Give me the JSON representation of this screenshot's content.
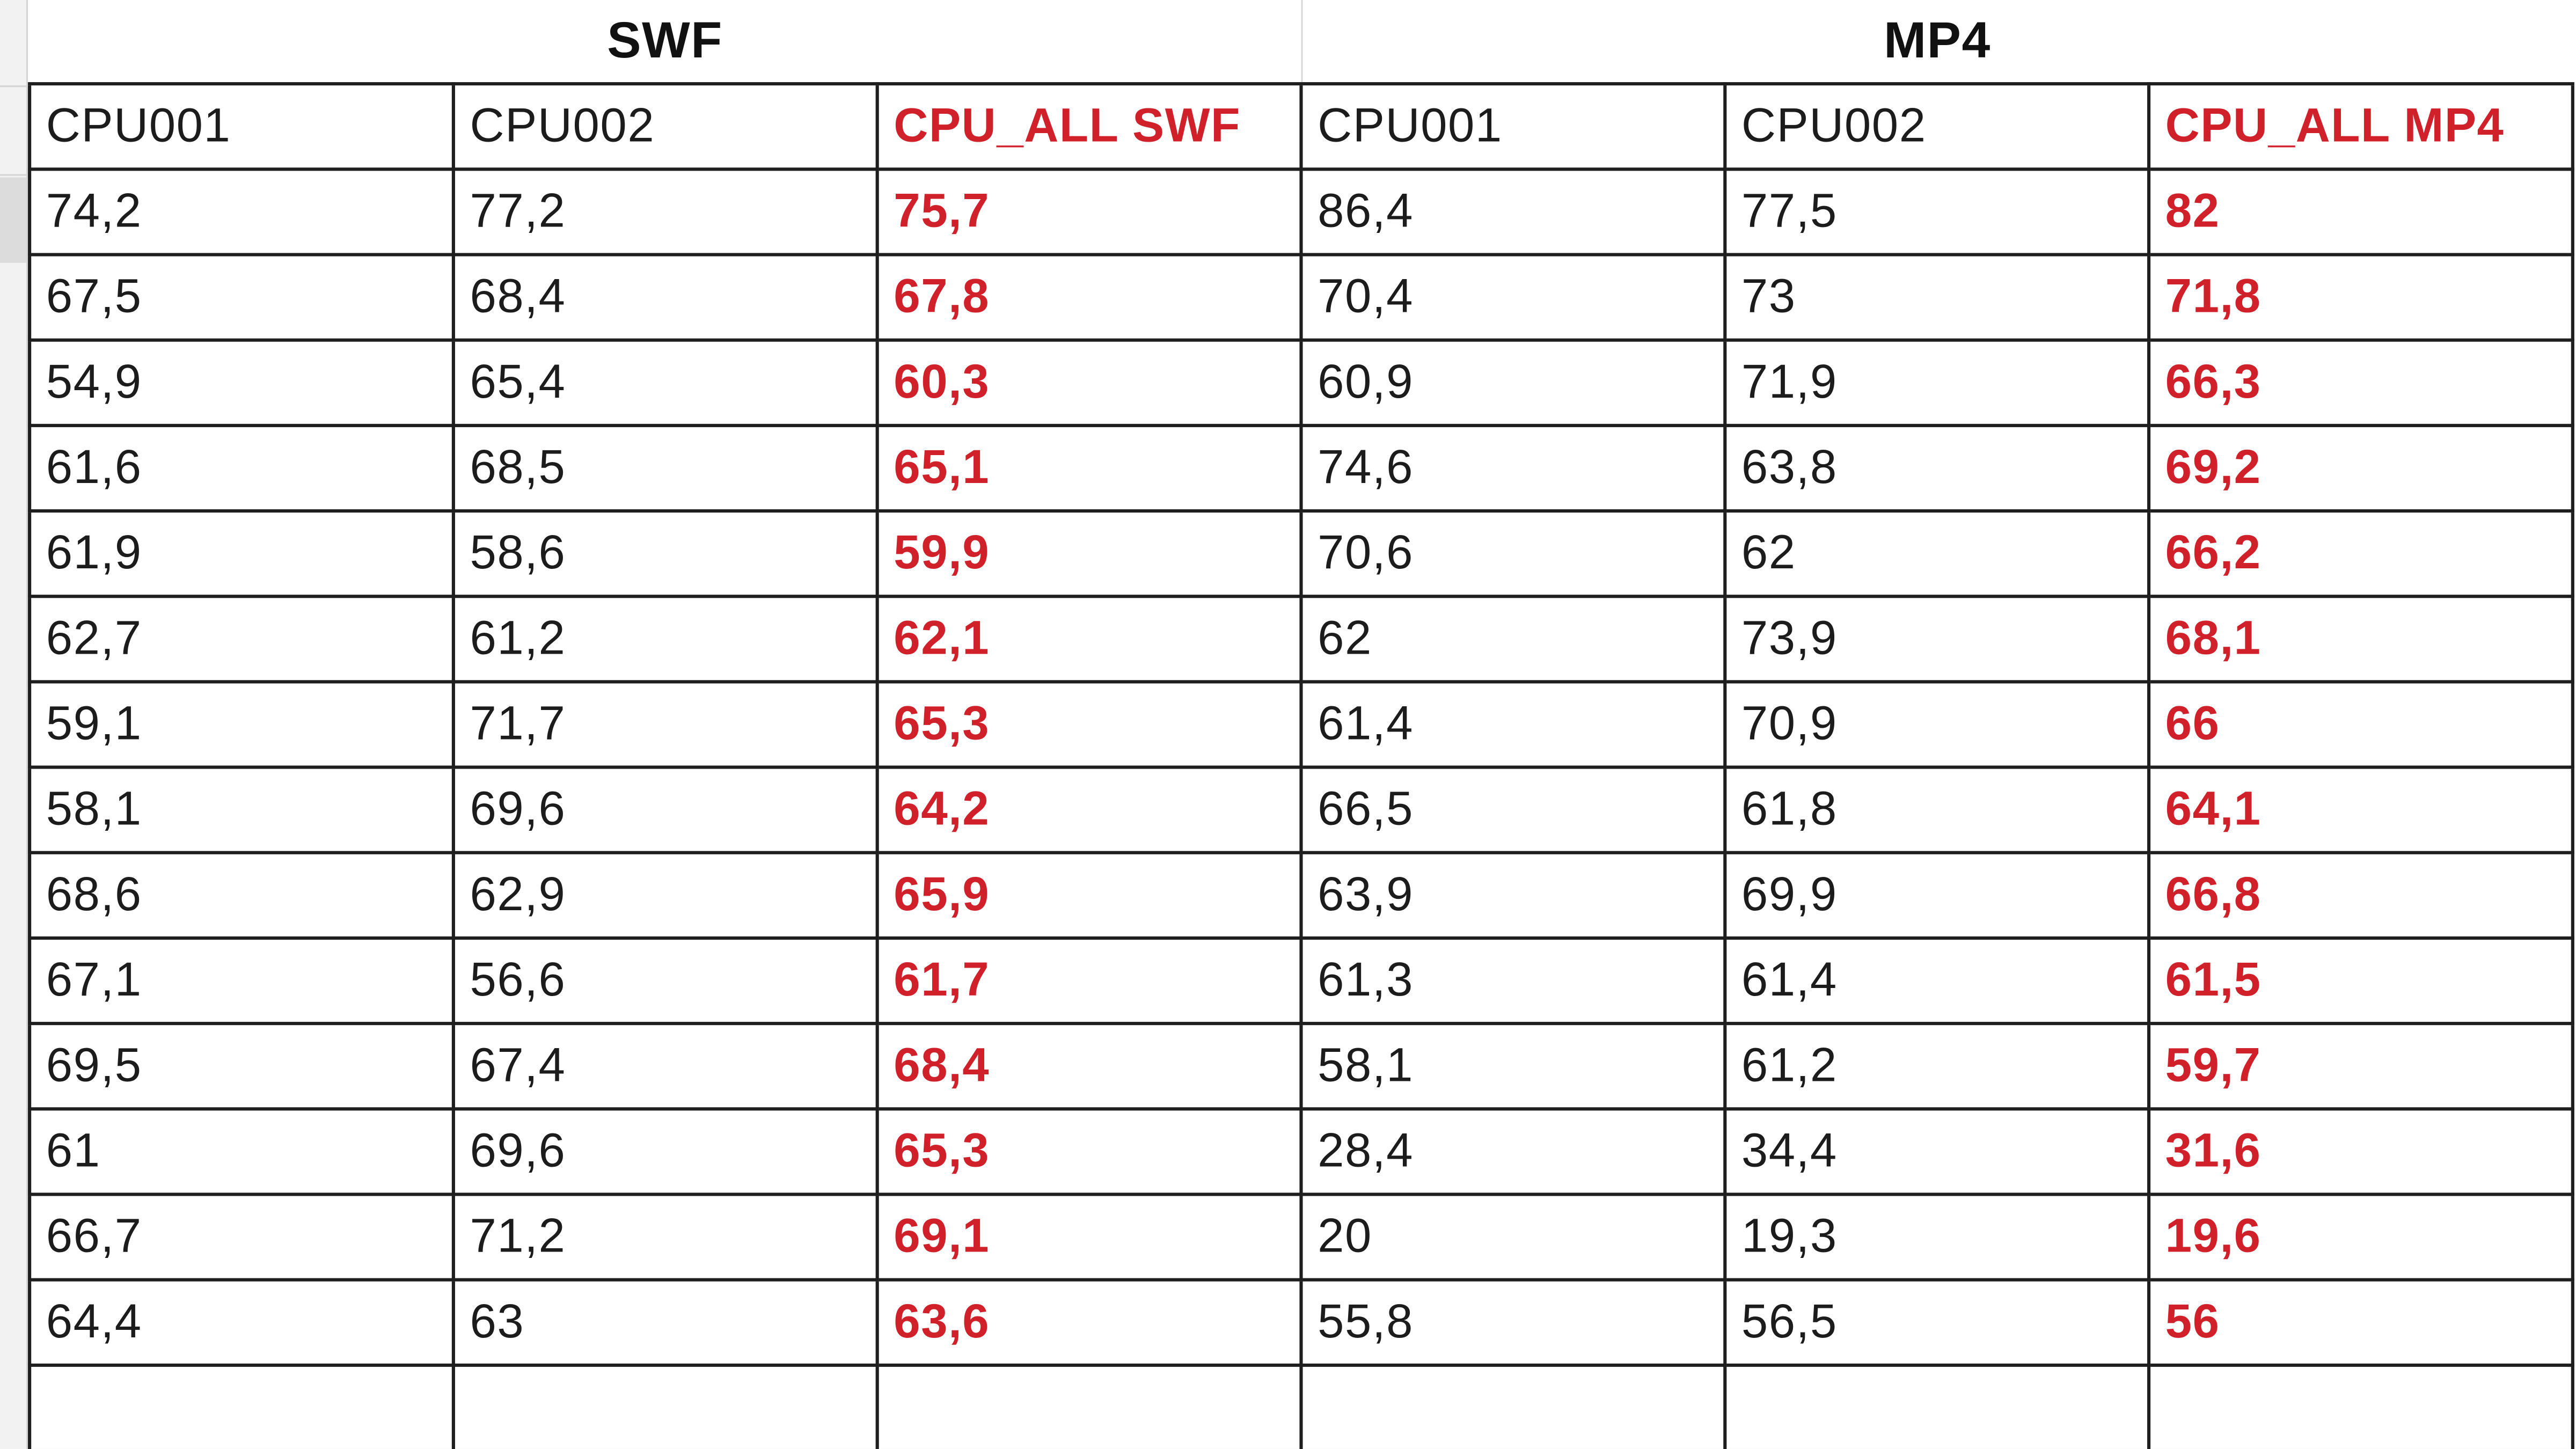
{
  "sheet": {
    "groups": [
      {
        "label": "SWF"
      },
      {
        "label": "MP4"
      }
    ],
    "headers": [
      "CPU001",
      "CPU002",
      "CPU_ALL SWF",
      "CPU001",
      "CPU002",
      "CPU_ALL MP4"
    ],
    "rows": [
      [
        "74,2",
        "77,2",
        "75,7",
        "86,4",
        "77,5",
        "82"
      ],
      [
        "67,5",
        "68,4",
        "67,8",
        "70,4",
        "73",
        "71,8"
      ],
      [
        "54,9",
        "65,4",
        "60,3",
        "60,9",
        "71,9",
        "66,3"
      ],
      [
        "61,6",
        "68,5",
        "65,1",
        "74,6",
        "63,8",
        "69,2"
      ],
      [
        "61,9",
        "58,6",
        "59,9",
        "70,6",
        "62",
        "66,2"
      ],
      [
        "62,7",
        "61,2",
        "62,1",
        "62",
        "73,9",
        "68,1"
      ],
      [
        "59,1",
        "71,7",
        "65,3",
        "61,4",
        "70,9",
        "66"
      ],
      [
        "58,1",
        "69,6",
        "64,2",
        "66,5",
        "61,8",
        "64,1"
      ],
      [
        "68,6",
        "62,9",
        "65,9",
        "63,9",
        "69,9",
        "66,8"
      ],
      [
        "67,1",
        "56,6",
        "61,7",
        "61,3",
        "61,4",
        "61,5"
      ],
      [
        "69,5",
        "67,4",
        "68,4",
        "58,1",
        "61,2",
        "59,7"
      ],
      [
        "61",
        "69,6",
        "65,3",
        "28,4",
        "34,4",
        "31,6"
      ],
      [
        "66,7",
        "71,2",
        "69,1",
        "20",
        "19,3",
        "19,6"
      ],
      [
        "64,4",
        "63",
        "63,6",
        "55,8",
        "56,5",
        "56"
      ]
    ],
    "colors": {
      "highlight": "#d0202a",
      "text": "#1c1c1c",
      "border": "#1e1e1e"
    }
  }
}
